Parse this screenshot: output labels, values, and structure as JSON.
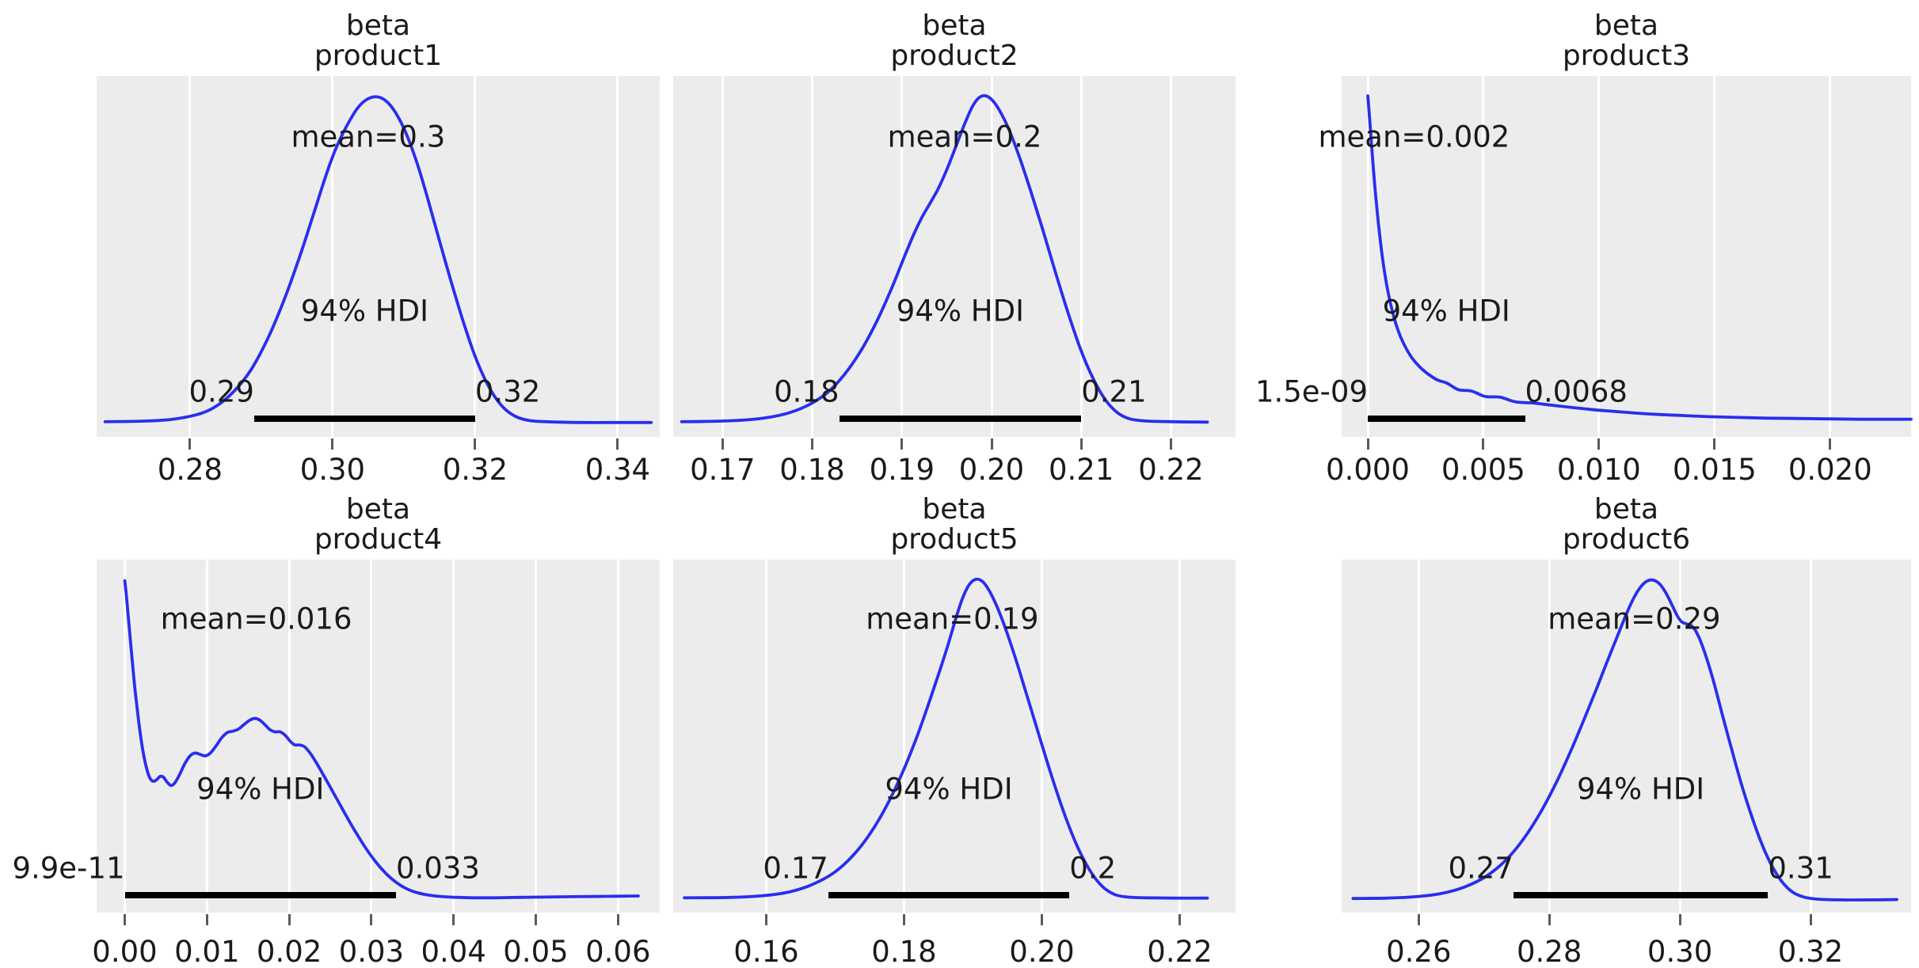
{
  "figure": {
    "background": "#ffffff",
    "axes_background": "#ececec",
    "gridline_color": "#ffffff",
    "curve_color": "#2a2eec",
    "hdi_bar_color": "#000000",
    "text_color": "#1a1a1a",
    "tick_mark_color": "#5a5a5a"
  },
  "chart_data": [
    {
      "type": "kde",
      "variable": "beta",
      "coord": "product1",
      "title_lines": [
        "beta",
        "product1"
      ],
      "mean": {
        "label": "mean=0.3",
        "value": 0.305
      },
      "hdi": {
        "label": "94% HDI",
        "low": 0.289,
        "low_label": "0.29",
        "high": 0.32,
        "high_label": "0.32"
      },
      "xlim": [
        0.2669,
        0.3459
      ],
      "xticks": [
        {
          "v": 0.28,
          "label": "0.28"
        },
        {
          "v": 0.3,
          "label": "0.30"
        },
        {
          "v": 0.32,
          "label": "0.32"
        },
        {
          "v": 0.34,
          "label": "0.34"
        }
      ],
      "curve": [
        [
          0.015,
          0.958
        ],
        [
          0.09,
          0.956
        ],
        [
          0.14,
          0.95
        ],
        [
          0.185,
          0.935
        ],
        [
          0.215,
          0.912
        ],
        [
          0.245,
          0.872
        ],
        [
          0.275,
          0.812
        ],
        [
          0.305,
          0.724
        ],
        [
          0.335,
          0.612
        ],
        [
          0.362,
          0.494
        ],
        [
          0.385,
          0.384
        ],
        [
          0.405,
          0.286
        ],
        [
          0.422,
          0.212
        ],
        [
          0.437,
          0.16
        ],
        [
          0.45,
          0.122
        ],
        [
          0.463,
          0.09
        ],
        [
          0.477,
          0.068
        ],
        [
          0.492,
          0.058
        ],
        [
          0.507,
          0.062
        ],
        [
          0.522,
          0.082
        ],
        [
          0.537,
          0.118
        ],
        [
          0.553,
          0.172
        ],
        [
          0.57,
          0.246
        ],
        [
          0.588,
          0.34
        ],
        [
          0.608,
          0.452
        ],
        [
          0.63,
          0.572
        ],
        [
          0.653,
          0.69
        ],
        [
          0.676,
          0.792
        ],
        [
          0.699,
          0.868
        ],
        [
          0.722,
          0.918
        ],
        [
          0.745,
          0.944
        ],
        [
          0.77,
          0.955
        ],
        [
          0.8,
          0.958
        ],
        [
          0.86,
          0.96
        ],
        [
          0.93,
          0.96
        ],
        [
          0.985,
          0.96
        ]
      ]
    },
    {
      "type": "kde",
      "variable": "beta",
      "coord": "product2",
      "title_lines": [
        "beta",
        "product2"
      ],
      "mean": {
        "label": "mean=0.2",
        "value": 0.197
      },
      "hdi": {
        "label": "94% HDI",
        "low": 0.183,
        "low_label": "0.18",
        "high": 0.21,
        "high_label": "0.21"
      },
      "xlim": [
        0.1645,
        0.2272
      ],
      "xticks": [
        {
          "v": 0.17,
          "label": "0.17"
        },
        {
          "v": 0.18,
          "label": "0.18"
        },
        {
          "v": 0.19,
          "label": "0.19"
        },
        {
          "v": 0.2,
          "label": "0.20"
        },
        {
          "v": 0.21,
          "label": "0.21"
        },
        {
          "v": 0.22,
          "label": "0.22"
        }
      ],
      "curve": [
        [
          0.015,
          0.958
        ],
        [
          0.09,
          0.956
        ],
        [
          0.15,
          0.95
        ],
        [
          0.2,
          0.936
        ],
        [
          0.24,
          0.912
        ],
        [
          0.275,
          0.876
        ],
        [
          0.305,
          0.826
        ],
        [
          0.335,
          0.758
        ],
        [
          0.362,
          0.68
        ],
        [
          0.388,
          0.59
        ],
        [
          0.41,
          0.505
        ],
        [
          0.428,
          0.438
        ],
        [
          0.443,
          0.39
        ],
        [
          0.457,
          0.352
        ],
        [
          0.472,
          0.31
        ],
        [
          0.488,
          0.254
        ],
        [
          0.504,
          0.19
        ],
        [
          0.519,
          0.13
        ],
        [
          0.532,
          0.085
        ],
        [
          0.544,
          0.06
        ],
        [
          0.556,
          0.055
        ],
        [
          0.568,
          0.068
        ],
        [
          0.582,
          0.1
        ],
        [
          0.598,
          0.152
        ],
        [
          0.616,
          0.226
        ],
        [
          0.636,
          0.32
        ],
        [
          0.658,
          0.43
        ],
        [
          0.68,
          0.545
        ],
        [
          0.702,
          0.655
        ],
        [
          0.724,
          0.755
        ],
        [
          0.746,
          0.836
        ],
        [
          0.768,
          0.896
        ],
        [
          0.79,
          0.933
        ],
        [
          0.812,
          0.95
        ],
        [
          0.84,
          0.956
        ],
        [
          0.89,
          0.958
        ],
        [
          0.95,
          0.959
        ]
      ]
    },
    {
      "type": "kde",
      "variable": "beta",
      "coord": "product3",
      "title_lines": [
        "beta",
        "product3"
      ],
      "mean": {
        "label": "mean=0.002",
        "value": 0.002
      },
      "hdi": {
        "label": "94% HDI",
        "low": 0.0,
        "low_label": "1.5e-09",
        "high": 0.0068,
        "high_label": "0.0068"
      },
      "xlim": [
        -0.00113,
        0.0235
      ],
      "xticks": [
        {
          "v": 0.0,
          "label": "0.000"
        },
        {
          "v": 0.005,
          "label": "0.005"
        },
        {
          "v": 0.01,
          "label": "0.010"
        },
        {
          "v": 0.015,
          "label": "0.015"
        },
        {
          "v": 0.02,
          "label": "0.020"
        }
      ],
      "curve": [
        [
          0.046,
          0.055
        ],
        [
          0.049,
          0.115
        ],
        [
          0.053,
          0.2
        ],
        [
          0.058,
          0.3
        ],
        [
          0.064,
          0.4
        ],
        [
          0.071,
          0.495
        ],
        [
          0.079,
          0.578
        ],
        [
          0.088,
          0.645
        ],
        [
          0.098,
          0.7
        ],
        [
          0.11,
          0.745
        ],
        [
          0.123,
          0.78
        ],
        [
          0.137,
          0.806
        ],
        [
          0.152,
          0.826
        ],
        [
          0.168,
          0.842
        ],
        [
          0.185,
          0.851
        ],
        [
          0.205,
          0.869
        ],
        [
          0.228,
          0.873
        ],
        [
          0.252,
          0.888
        ],
        [
          0.278,
          0.89
        ],
        [
          0.306,
          0.903
        ],
        [
          0.336,
          0.906
        ],
        [
          0.368,
          0.912
        ],
        [
          0.402,
          0.918
        ],
        [
          0.438,
          0.924
        ],
        [
          0.476,
          0.929
        ],
        [
          0.516,
          0.934
        ],
        [
          0.558,
          0.938
        ],
        [
          0.602,
          0.941
        ],
        [
          0.648,
          0.944
        ],
        [
          0.696,
          0.946
        ],
        [
          0.746,
          0.948
        ],
        [
          0.798,
          0.949
        ],
        [
          0.852,
          0.95
        ],
        [
          0.908,
          0.951
        ],
        [
          0.966,
          0.951
        ],
        [
          1.0,
          0.951
        ]
      ]
    },
    {
      "type": "kde",
      "variable": "beta",
      "coord": "product4",
      "title_lines": [
        "beta",
        "product4"
      ],
      "mean": {
        "label": "mean=0.016",
        "value": 0.016
      },
      "hdi": {
        "label": "94% HDI",
        "low": 0.0,
        "low_label": "9.9e-11",
        "high": 0.033,
        "high_label": "0.033"
      },
      "xlim": [
        -0.00342,
        0.06508
      ],
      "xticks": [
        {
          "v": 0.0,
          "label": "0.00"
        },
        {
          "v": 0.01,
          "label": "0.01"
        },
        {
          "v": 0.02,
          "label": "0.02"
        },
        {
          "v": 0.03,
          "label": "0.03"
        },
        {
          "v": 0.04,
          "label": "0.04"
        },
        {
          "v": 0.05,
          "label": "0.05"
        },
        {
          "v": 0.06,
          "label": "0.06"
        }
      ],
      "curve": [
        [
          0.05,
          0.06
        ],
        [
          0.053,
          0.105
        ],
        [
          0.057,
          0.175
        ],
        [
          0.062,
          0.265
        ],
        [
          0.068,
          0.365
        ],
        [
          0.075,
          0.462
        ],
        [
          0.082,
          0.54
        ],
        [
          0.089,
          0.593
        ],
        [
          0.095,
          0.62
        ],
        [
          0.101,
          0.628
        ],
        [
          0.107,
          0.623
        ],
        [
          0.113,
          0.614
        ],
        [
          0.119,
          0.617
        ],
        [
          0.126,
          0.632
        ],
        [
          0.133,
          0.64
        ],
        [
          0.14,
          0.63
        ],
        [
          0.148,
          0.607
        ],
        [
          0.157,
          0.577
        ],
        [
          0.166,
          0.556
        ],
        [
          0.175,
          0.548
        ],
        [
          0.184,
          0.552
        ],
        [
          0.193,
          0.556
        ],
        [
          0.202,
          0.548
        ],
        [
          0.212,
          0.528
        ],
        [
          0.222,
          0.505
        ],
        [
          0.232,
          0.49
        ],
        [
          0.242,
          0.486
        ],
        [
          0.252,
          0.48
        ],
        [
          0.262,
          0.467
        ],
        [
          0.272,
          0.455
        ],
        [
          0.281,
          0.45
        ],
        [
          0.29,
          0.455
        ],
        [
          0.299,
          0.468
        ],
        [
          0.308,
          0.482
        ],
        [
          0.317,
          0.488
        ],
        [
          0.326,
          0.488
        ],
        [
          0.335,
          0.498
        ],
        [
          0.344,
          0.515
        ],
        [
          0.352,
          0.525
        ],
        [
          0.36,
          0.525
        ],
        [
          0.369,
          0.53
        ],
        [
          0.379,
          0.548
        ],
        [
          0.39,
          0.575
        ],
        [
          0.402,
          0.608
        ],
        [
          0.415,
          0.645
        ],
        [
          0.429,
          0.685
        ],
        [
          0.444,
          0.728
        ],
        [
          0.46,
          0.772
        ],
        [
          0.477,
          0.815
        ],
        [
          0.495,
          0.855
        ],
        [
          0.513,
          0.888
        ],
        [
          0.531,
          0.913
        ],
        [
          0.55,
          0.932
        ],
        [
          0.57,
          0.944
        ],
        [
          0.592,
          0.951
        ],
        [
          0.616,
          0.955
        ],
        [
          0.642,
          0.957
        ],
        [
          0.672,
          0.958
        ],
        [
          0.706,
          0.958
        ],
        [
          0.746,
          0.957
        ],
        [
          0.792,
          0.956
        ],
        [
          0.844,
          0.955
        ],
        [
          0.902,
          0.954
        ],
        [
          0.962,
          0.953
        ]
      ]
    },
    {
      "type": "kde",
      "variable": "beta",
      "coord": "product5",
      "title_lines": [
        "beta",
        "product5"
      ],
      "mean": {
        "label": "mean=0.19",
        "value": 0.187
      },
      "hdi": {
        "label": "94% HDI",
        "low": 0.169,
        "low_label": "0.17",
        "high": 0.204,
        "high_label": "0.2"
      },
      "xlim": [
        0.1465,
        0.2281
      ],
      "xticks": [
        {
          "v": 0.16,
          "label": "0.16"
        },
        {
          "v": 0.18,
          "label": "0.18"
        },
        {
          "v": 0.2,
          "label": "0.20"
        },
        {
          "v": 0.22,
          "label": "0.22"
        }
      ],
      "curve": [
        [
          0.02,
          0.958
        ],
        [
          0.1,
          0.957
        ],
        [
          0.16,
          0.952
        ],
        [
          0.205,
          0.942
        ],
        [
          0.245,
          0.922
        ],
        [
          0.285,
          0.888
        ],
        [
          0.32,
          0.838
        ],
        [
          0.352,
          0.772
        ],
        [
          0.382,
          0.69
        ],
        [
          0.41,
          0.595
        ],
        [
          0.435,
          0.495
        ],
        [
          0.456,
          0.4
        ],
        [
          0.474,
          0.315
        ],
        [
          0.489,
          0.24
        ],
        [
          0.502,
          0.17
        ],
        [
          0.514,
          0.112
        ],
        [
          0.526,
          0.072
        ],
        [
          0.538,
          0.056
        ],
        [
          0.55,
          0.062
        ],
        [
          0.562,
          0.088
        ],
        [
          0.576,
          0.134
        ],
        [
          0.592,
          0.2
        ],
        [
          0.61,
          0.286
        ],
        [
          0.63,
          0.39
        ],
        [
          0.652,
          0.505
        ],
        [
          0.674,
          0.618
        ],
        [
          0.696,
          0.722
        ],
        [
          0.718,
          0.81
        ],
        [
          0.74,
          0.878
        ],
        [
          0.762,
          0.924
        ],
        [
          0.784,
          0.948
        ],
        [
          0.808,
          0.956
        ],
        [
          0.84,
          0.958
        ],
        [
          0.89,
          0.959
        ],
        [
          0.95,
          0.959
        ]
      ]
    },
    {
      "type": "kde",
      "variable": "beta",
      "coord": "product6",
      "title_lines": [
        "beta",
        "product6"
      ],
      "mean": {
        "label": "mean=0.29",
        "value": 0.293
      },
      "hdi": {
        "label": "94% HDI",
        "low": 0.2745,
        "low_label": "0.27",
        "high": 0.3135,
        "high_label": "0.31"
      },
      "xlim": [
        0.2482,
        0.3354
      ],
      "xticks": [
        {
          "v": 0.26,
          "label": "0.26"
        },
        {
          "v": 0.28,
          "label": "0.28"
        },
        {
          "v": 0.3,
          "label": "0.30"
        },
        {
          "v": 0.32,
          "label": "0.32"
        }
      ],
      "curve": [
        [
          0.02,
          0.96
        ],
        [
          0.08,
          0.959
        ],
        [
          0.13,
          0.955
        ],
        [
          0.175,
          0.946
        ],
        [
          0.215,
          0.928
        ],
        [
          0.253,
          0.898
        ],
        [
          0.288,
          0.852
        ],
        [
          0.32,
          0.79
        ],
        [
          0.35,
          0.714
        ],
        [
          0.378,
          0.628
        ],
        [
          0.404,
          0.536
        ],
        [
          0.428,
          0.444
        ],
        [
          0.45,
          0.356
        ],
        [
          0.468,
          0.282
        ],
        [
          0.484,
          0.218
        ],
        [
          0.498,
          0.162
        ],
        [
          0.511,
          0.115
        ],
        [
          0.523,
          0.082
        ],
        [
          0.535,
          0.062
        ],
        [
          0.547,
          0.058
        ],
        [
          0.559,
          0.07
        ],
        [
          0.57,
          0.096
        ],
        [
          0.58,
          0.128
        ],
        [
          0.589,
          0.158
        ],
        [
          0.597,
          0.176
        ],
        [
          0.605,
          0.182
        ],
        [
          0.613,
          0.186
        ],
        [
          0.621,
          0.2
        ],
        [
          0.63,
          0.23
        ],
        [
          0.641,
          0.28
        ],
        [
          0.654,
          0.35
        ],
        [
          0.668,
          0.436
        ],
        [
          0.684,
          0.532
        ],
        [
          0.701,
          0.63
        ],
        [
          0.719,
          0.722
        ],
        [
          0.737,
          0.802
        ],
        [
          0.755,
          0.866
        ],
        [
          0.773,
          0.912
        ],
        [
          0.792,
          0.942
        ],
        [
          0.812,
          0.956
        ],
        [
          0.838,
          0.962
        ],
        [
          0.875,
          0.964
        ],
        [
          0.925,
          0.964
        ],
        [
          0.975,
          0.963
        ]
      ]
    }
  ]
}
